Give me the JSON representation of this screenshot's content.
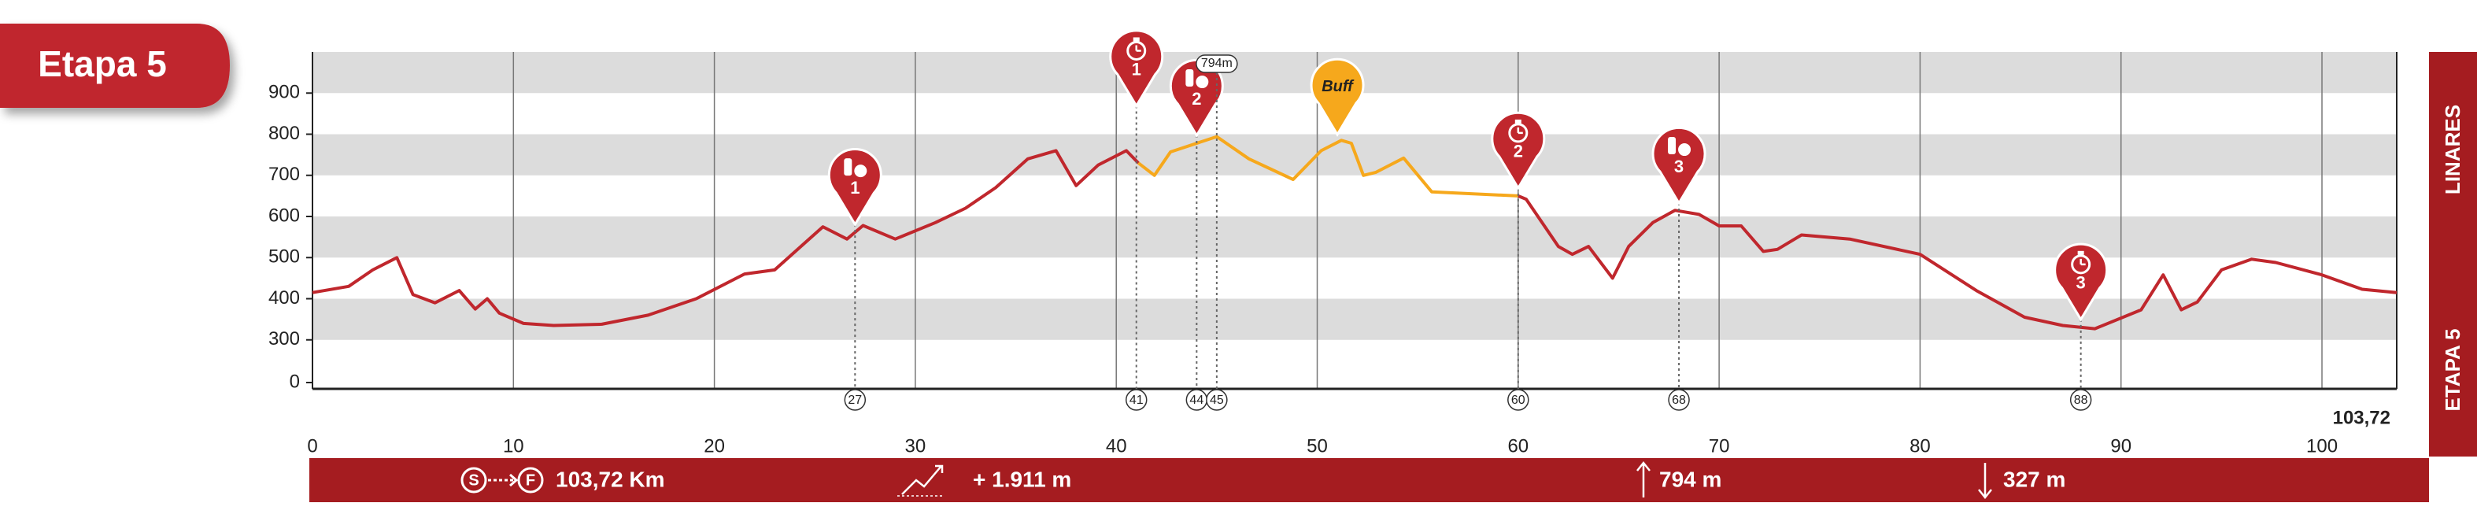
{
  "chart_data": {
    "type": "line",
    "tab": "Etapa 5",
    "destination": "LINARES",
    "stage": "ETAPA 5",
    "x": [
      0,
      1.8,
      3,
      4.2,
      5,
      6.1,
      7.3,
      8.1,
      8.7,
      9.3,
      10.5,
      12,
      14.4,
      16.7,
      19.1,
      21.5,
      23,
      25.4,
      26.6,
      27.4,
      29,
      31,
      32.5,
      34,
      35.6,
      37,
      38,
      39.1,
      40.5,
      41.1,
      41.9,
      42.7,
      45,
      46.6,
      48.8,
      50.2,
      51.2,
      51.7,
      52.3,
      52.9,
      54.3,
      55.7,
      60,
      60.4,
      62,
      62.7,
      63.5,
      64.7,
      65.5,
      66.7,
      67.8,
      69,
      70,
      71.1,
      72.2,
      72.9,
      74.1,
      76.5,
      80,
      82.8,
      85.2,
      87.1,
      88.7,
      91,
      92.1,
      93,
      93.8,
      95,
      96.5,
      97.7,
      100,
      102,
      103.72
    ],
    "series": [
      {
        "color": "#c0272d",
        "values": [
          415,
          430,
          470,
          500,
          410,
          390,
          420,
          375,
          400,
          365,
          340,
          335,
          338,
          360,
          400,
          460,
          470,
          575,
          545,
          578,
          545,
          585,
          620,
          670,
          740,
          760,
          675,
          725,
          760,
          730,
          null,
          null,
          null,
          null,
          null,
          null,
          null,
          null,
          null,
          null,
          null,
          null,
          650,
          642,
          527,
          508,
          527,
          450,
          527,
          585,
          615,
          605,
          577,
          577,
          515,
          520,
          555,
          545,
          508,
          420,
          355,
          335,
          327,
          373,
          458,
          373,
          392,
          470,
          496,
          488,
          458,
          423,
          415
        ]
      },
      {
        "color": "#f6a81c",
        "values": [
          null,
          null,
          null,
          null,
          null,
          null,
          null,
          null,
          null,
          null,
          null,
          null,
          null,
          null,
          null,
          null,
          null,
          null,
          null,
          null,
          null,
          null,
          null,
          null,
          null,
          null,
          null,
          null,
          null,
          730,
          700,
          757,
          794,
          740,
          690,
          760,
          785,
          778,
          700,
          707,
          742,
          660,
          650,
          null,
          null,
          null,
          null,
          null,
          null,
          null,
          null,
          null,
          null,
          null,
          null,
          null,
          null,
          null,
          null,
          null,
          null,
          null,
          null,
          null,
          null,
          null,
          null,
          null,
          null,
          null,
          null,
          null,
          null
        ]
      }
    ],
    "xlim": [
      0,
      103.72
    ],
    "xticks": [
      0,
      10,
      20,
      30,
      40,
      50,
      60,
      70,
      80,
      90,
      100,
      {
        "value": 103.72,
        "label": "103,72"
      }
    ],
    "ylim": [
      0,
      1000
    ],
    "y_break": [
      0,
      200
    ],
    "yticks": [
      0,
      300,
      400,
      500,
      600,
      700,
      800,
      900
    ],
    "grid": true,
    "markers": [
      {
        "km": 27,
        "pin": "1",
        "icon": "supply"
      },
      {
        "km": 41,
        "pin": "1",
        "icon": "timer"
      },
      {
        "km": 44,
        "pin": "2",
        "icon": "supply"
      },
      {
        "km": 45,
        "note": "794m"
      },
      {
        "km": 60,
        "pin": "2",
        "icon": "timer"
      },
      {
        "km": 68,
        "pin": "3",
        "icon": "supply"
      },
      {
        "km": 88,
        "pin": "3",
        "icon": "timer"
      }
    ],
    "sponsor": {
      "km": 51,
      "label": "Buff",
      "color": "#f6a81c"
    },
    "stats": {
      "start": "S",
      "finish": "F",
      "distance": "103,72 Km",
      "ascent": "+ 1.911 m",
      "max": "794 m",
      "min": "327 m"
    }
  }
}
